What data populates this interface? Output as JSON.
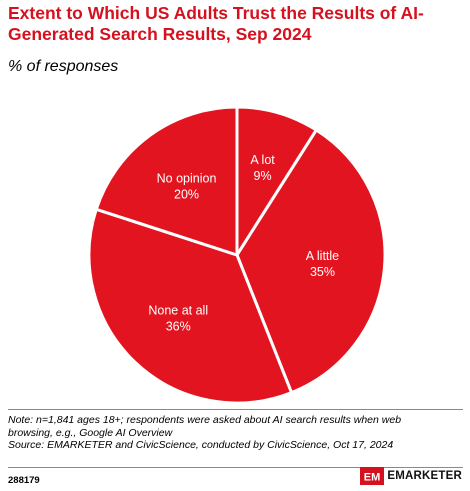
{
  "title": "Extent to Which US Adults Trust the Results of AI-Generated Search Results, Sep 2024",
  "subtitle": "% of responses",
  "chart_data": {
    "type": "pie",
    "slices": [
      {
        "label": "A lot",
        "value": 9,
        "value_label": "9%"
      },
      {
        "label": "A little",
        "value": 35,
        "value_label": "35%"
      },
      {
        "label": "None at all",
        "value": 36,
        "value_label": "36%"
      },
      {
        "label": "No opinion",
        "value": 20,
        "value_label": "20%"
      }
    ],
    "colors": {
      "slice": "#e2141f",
      "edge": "#ffffff",
      "label": "#ffffff"
    }
  },
  "notes": {
    "note_line1": "Note: n=1,841 ages 18+; respondents were asked about AI search results when web",
    "note_line2": "browsing, e.g., Google AI Overview",
    "source": "Source: EMARKETER and CivicScience, conducted by CivicScience, Oct 17, 2024"
  },
  "footer": {
    "chart_id": "288179",
    "brand": "EMARKETER",
    "logo_text": "EM"
  },
  "colors": {
    "accent": "#d6111f"
  }
}
